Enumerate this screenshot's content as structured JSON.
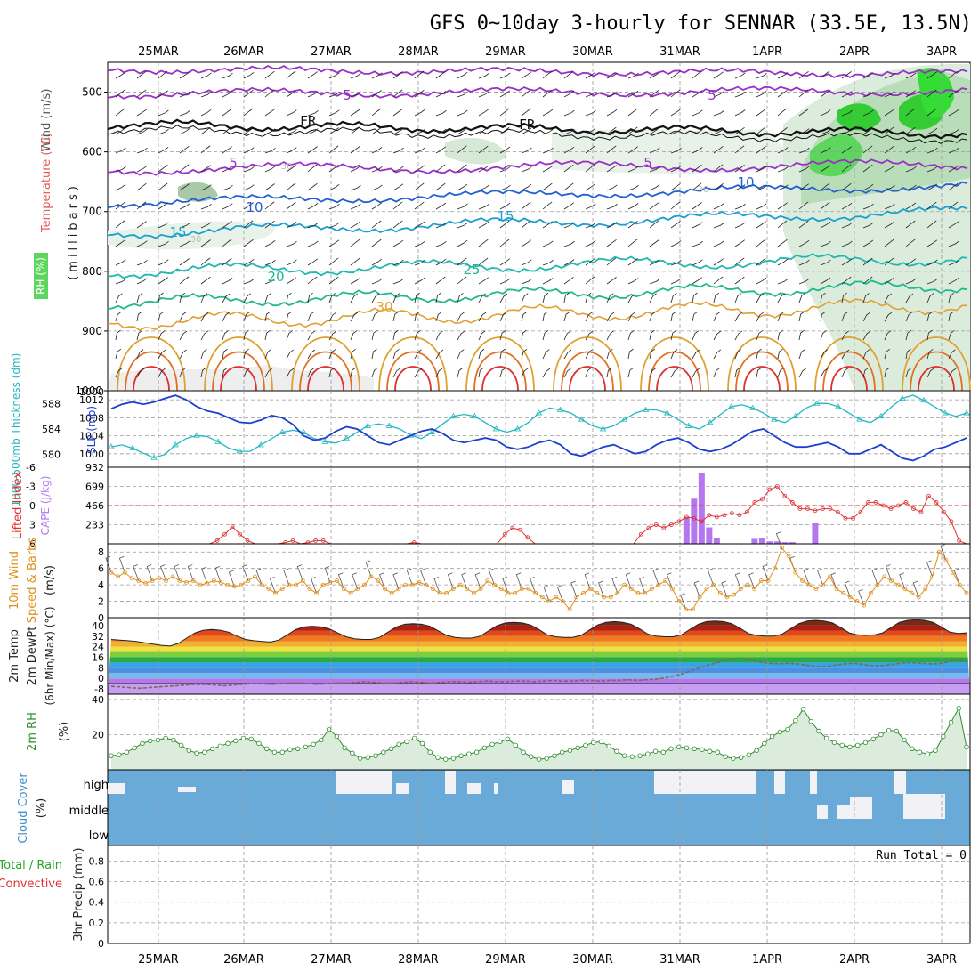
{
  "title": "GFS 0~10day 3-hourly for SENNAR (33.5E, 13.5N)",
  "dates": [
    "25MAR",
    "26MAR",
    "27MAR",
    "28MAR",
    "29MAR",
    "30MAR",
    "31MAR",
    "1APR",
    "2APR",
    "3APR"
  ],
  "colors": {
    "wind_label": "#555555",
    "temp_label": "#e25a5a",
    "thickness": "#22b8c0",
    "slp": "#1c3fcf",
    "lifted": "#e03030",
    "cape": "#b577f0",
    "wind10": "#e0901c",
    "rh": "#2e8b2e",
    "cloud_label": "#3b8fcb",
    "cloud_fill": "#6aaad8",
    "precip_total": "#2aa52a",
    "precip_conv": "#e03030"
  },
  "panels": {
    "upper": {
      "ylabel_wind": "Wind (m/s)",
      "ylabel_temp": "Temperature (°C)",
      "ylabel_rh": "RH (%)",
      "ylabel_unit": "(millibars)",
      "yticks": [
        "500",
        "600",
        "700",
        "800",
        "900",
        "1000"
      ],
      "contour_labels": [
        "5",
        "5",
        "5",
        "5",
        "FR",
        "FR",
        "10",
        "10",
        "15",
        "15",
        "20",
        "25",
        "30",
        "30",
        "30",
        "30"
      ]
    },
    "slp": {
      "ylabel_thick": "1000-500mb Thickness (dm)",
      "ylabel_slp": "SLP (mb)",
      "thick_ticks": [
        "588",
        "584",
        "580"
      ],
      "slp_ticks": [
        "1012",
        "1008",
        "1004",
        "1000"
      ],
      "slp_top": "1000"
    },
    "cape": {
      "ylabel_li": "Lifted Index",
      "ylabel_cape": "CAPE (J/kg)",
      "li_ticks": [
        "-6",
        "-3",
        "0",
        "3",
        "6"
      ],
      "cape_ticks": [
        "932",
        "699",
        "466",
        "233"
      ]
    },
    "wind10": {
      "ylabel1": "10m Wind",
      "ylabel2": "Speed & Barbs",
      "ylabel3": "(m/s)",
      "yticks": [
        "8",
        "6",
        "4",
        "2",
        "0"
      ]
    },
    "temp2m": {
      "ylabel1": "2m Temp",
      "ylabel2": "2m DewPt",
      "ylabel3": "(6hr Min/Max) (°C)",
      "yticks": [
        "40",
        "32",
        "24",
        "16",
        "8",
        "0",
        "-8"
      ]
    },
    "rh2m": {
      "ylabel1": "2m RH",
      "ylabel2": "(%)",
      "yticks": [
        "40",
        "20"
      ]
    },
    "cloud": {
      "ylabel1": "Cloud Cover",
      "ylabel2": "(%)",
      "levels": [
        "high",
        "middle",
        "low"
      ]
    },
    "precip": {
      "ylabel1": "Total / Rain",
      "ylabel2": "Convective",
      "ylabel3": "3hr Precip (mm)",
      "yticks": [
        "0.8",
        "0.6",
        "0.4",
        "0.2",
        "0"
      ],
      "run_total": "Run Total = 0"
    }
  },
  "chart_data": [
    {
      "type": "line",
      "name": "1000-500mb Thickness (dm)",
      "ylim": [
        578,
        590
      ],
      "values": [
        581.2,
        581.5,
        581.0,
        580.2,
        579.5,
        580.0,
        581.5,
        582.5,
        583.0,
        582.8,
        582.0,
        581.0,
        580.5,
        580.5,
        581.5,
        582.5,
        583.5,
        583.8,
        583.5,
        582.5,
        582.0,
        581.8,
        582.5,
        583.5,
        584.5,
        584.8,
        584.5,
        584.0,
        583.0,
        582.5,
        583.5,
        584.8,
        586.0,
        586.3,
        586.0,
        585.0,
        584.0,
        583.5,
        584.0,
        585.0,
        586.5,
        587.3,
        587.0,
        586.5,
        585.5,
        584.5,
        584.0,
        584.5,
        585.5,
        586.5,
        587.0,
        587.0,
        586.5,
        585.5,
        584.5,
        584.0,
        585.0,
        586.3,
        587.5,
        587.8,
        587.3,
        586.5,
        585.5,
        585.0,
        586.0,
        587.3,
        588.0,
        588.0,
        587.5,
        586.5,
        585.5,
        585.0,
        586.0,
        587.5,
        588.8,
        589.3,
        588.5,
        587.5,
        586.5,
        586.0,
        586.5
      ]
    },
    {
      "type": "line",
      "name": "SLP (mb)",
      "ylim": [
        997,
        1014
      ],
      "values": [
        1010.0,
        1011.0,
        1011.5,
        1011.0,
        1011.5,
        1012.3,
        1013.0,
        1012.0,
        1010.5,
        1009.5,
        1009.0,
        1008.0,
        1007.0,
        1006.8,
        1007.5,
        1008.5,
        1008.0,
        1006.5,
        1004.0,
        1003.0,
        1003.5,
        1005.0,
        1006.0,
        1005.5,
        1004.0,
        1002.5,
        1002.0,
        1003.0,
        1004.0,
        1005.0,
        1005.5,
        1004.5,
        1003.0,
        1002.5,
        1003.0,
        1003.5,
        1003.0,
        1001.5,
        1001.0,
        1001.5,
        1002.5,
        1003.0,
        1002.0,
        1000.0,
        999.5,
        1000.5,
        1001.5,
        1002.0,
        1001.0,
        1000.0,
        1000.5,
        1002.0,
        1003.0,
        1003.5,
        1002.5,
        1001.0,
        1000.5,
        1001.0,
        1002.0,
        1003.5,
        1005.0,
        1005.5,
        1004.0,
        1002.5,
        1001.5,
        1001.5,
        1002.0,
        1002.5,
        1001.5,
        1000.0,
        1000.0,
        1001.0,
        1002.0,
        1000.5,
        999.0,
        998.5,
        999.5,
        1001.0,
        1001.5,
        1002.5,
        1003.5
      ]
    },
    {
      "type": "line",
      "name": "Lifted Index",
      "ylim": [
        6,
        -6
      ],
      "values": [
        6,
        6,
        6,
        6,
        6,
        6,
        6,
        6,
        6,
        6,
        6,
        6,
        6,
        6,
        5.5,
        4.5,
        3.3,
        4.5,
        5.5,
        6,
        6,
        6,
        6,
        5.8,
        5.5,
        6,
        5.8,
        5.5,
        5.5,
        6,
        6,
        6,
        6,
        6,
        6,
        6,
        6,
        6,
        6,
        6,
        5.8,
        6,
        6,
        6,
        6,
        6,
        6,
        6,
        6,
        6,
        6,
        6,
        4.5,
        3.5,
        3.8,
        5.0,
        6,
        6,
        6,
        6,
        6,
        6,
        6,
        6,
        6,
        6,
        6,
        6,
        6,
        6,
        4.5,
        3.5,
        3.0,
        3.5,
        3.0,
        2.5,
        1.8,
        2.0,
        2.5,
        1.5,
        1.8,
        1.5,
        1.2,
        1.5,
        1.0,
        -0.5,
        -1.0,
        -2.5,
        -3.0,
        -1.5,
        -0.5,
        0.5,
        0.5,
        0.8,
        0.5,
        0.5,
        1.0,
        2.0,
        2.0,
        1.0,
        -0.5,
        -0.5,
        0.0,
        0.5,
        0.0,
        -0.5,
        0.5,
        1.0,
        -1.5,
        -0.5,
        1.0,
        2.5,
        5.5,
        6.0
      ]
    },
    {
      "type": "bar",
      "name": "CAPE (J/kg)",
      "ylim": [
        0,
        932
      ],
      "x_index": [
        76,
        77,
        78,
        79,
        80,
        85,
        86,
        87,
        88,
        89,
        90,
        93
      ],
      "values": [
        330,
        550,
        860,
        200,
        70,
        60,
        70,
        30,
        30,
        20,
        20,
        250
      ]
    },
    {
      "type": "line",
      "name": "10m Wind Speed",
      "ylim": [
        0,
        9
      ],
      "values": [
        5.5,
        5.0,
        5.5,
        4.8,
        4.5,
        4.2,
        4.5,
        4.8,
        4.5,
        5.0,
        4.5,
        4.3,
        4.5,
        4.0,
        4.2,
        4.5,
        4.3,
        4.0,
        3.8,
        4.0,
        4.5,
        5.0,
        4.0,
        3.5,
        3.0,
        3.5,
        4.0,
        4.0,
        4.5,
        3.5,
        3.0,
        4.0,
        4.3,
        4.5,
        3.5,
        3.0,
        3.5,
        4.0,
        5.0,
        4.5,
        3.5,
        3.0,
        3.5,
        4.0,
        4.0,
        4.3,
        4.0,
        3.5,
        3.0,
        3.0,
        3.5,
        4.0,
        3.5,
        3.0,
        3.5,
        4.5,
        4.0,
        3.5,
        3.0,
        3.0,
        3.5,
        3.5,
        3.0,
        2.5,
        2.0,
        2.5,
        2.0,
        1.0,
        2.5,
        3.0,
        3.5,
        3.0,
        2.5,
        2.5,
        3.0,
        4.0,
        3.5,
        3.0,
        3.0,
        3.5,
        4.0,
        4.5,
        3.5,
        2.0,
        1.0,
        1.0,
        2.5,
        3.5,
        4.0,
        3.0,
        2.5,
        2.8,
        3.5,
        4.0,
        3.5,
        4.5,
        4.5,
        6.0,
        8.5,
        7.5,
        5.5,
        4.5,
        4.0,
        3.5,
        4.0,
        5.0,
        3.5,
        3.0,
        2.5,
        2.0,
        1.5,
        3.0,
        4.0,
        5.0,
        4.5,
        4.0,
        3.5,
        3.0,
        2.5,
        3.5,
        5.0,
        8.0,
        7.0,
        5.5,
        4.0,
        3.0
      ]
    },
    {
      "type": "area",
      "name": "2m Temp",
      "ylim": [
        -12,
        46
      ],
      "values": [
        29.5,
        29.0,
        28.5,
        28.0,
        27.0,
        26.0,
        25.0,
        24.5,
        26.5,
        30.5,
        34.5,
        36.5,
        37.0,
        36.5,
        35.0,
        32.0,
        29.5,
        28.5,
        28.0,
        27.5,
        29.0,
        33.0,
        37.0,
        39.0,
        39.5,
        39.0,
        37.5,
        34.5,
        31.5,
        30.0,
        29.5,
        29.5,
        31.0,
        35.0,
        39.0,
        41.0,
        41.5,
        41.0,
        39.5,
        36.0,
        32.5,
        31.0,
        30.5,
        30.5,
        32.0,
        36.0,
        40.0,
        42.0,
        42.5,
        42.0,
        40.5,
        37.0,
        33.0,
        31.5,
        31.0,
        31.0,
        32.5,
        36.5,
        40.5,
        42.5,
        43.0,
        42.5,
        41.0,
        37.5,
        33.5,
        32.0,
        31.5,
        31.5,
        33.0,
        37.0,
        41.0,
        43.0,
        43.5,
        43.0,
        41.5,
        38.0,
        34.0,
        32.5,
        32.0,
        32.0,
        33.5,
        37.5,
        41.5,
        43.5,
        44.0,
        43.5,
        42.0,
        38.5,
        34.5,
        33.0,
        32.5,
        33.0,
        34.5,
        38.5,
        42.5,
        44.0,
        44.5,
        44.0,
        42.5,
        39.0,
        35.0,
        34.0,
        34.5
      ]
    },
    {
      "type": "line",
      "name": "2m DewPt",
      "ylim": [
        -12,
        46
      ],
      "values": [
        -6.0,
        -6.5,
        -7.0,
        -7.5,
        -7.0,
        -6.5,
        -6.0,
        -5.5,
        -5.0,
        -4.5,
        -4.5,
        -5.0,
        -5.5,
        -5.0,
        -4.5,
        -4.0,
        -4.0,
        -4.5,
        -4.0,
        -3.5,
        -3.5,
        -4.0,
        -4.5,
        -4.0,
        -3.5,
        -3.5,
        -3.0,
        -2.5,
        -3.0,
        -3.5,
        -3.5,
        -3.0,
        -2.5,
        -3.0,
        -3.5,
        -3.0,
        -2.5,
        -2.5,
        -3.0,
        -2.5,
        -2.0,
        -2.5,
        -2.5,
        -2.0,
        -2.0,
        -2.5,
        -2.0,
        -1.5,
        -2.0,
        -2.0,
        -1.5,
        -1.5,
        -2.0,
        -1.5,
        -1.5,
        -1.0,
        -1.5,
        -1.0,
        -0.5,
        0.5,
        2.0,
        4.0,
        6.5,
        9.0,
        11.0,
        13.0,
        14.5,
        15.0,
        14.0,
        12.5,
        11.5,
        11.0,
        11.5,
        11.0,
        10.0,
        9.0,
        9.0,
        10.0,
        11.0,
        11.5,
        10.5,
        9.5,
        9.5,
        10.5,
        11.5,
        12.0,
        11.5,
        11.0,
        11.0,
        12.5,
        14.0,
        12.5
      ]
    },
    {
      "type": "area",
      "name": "2m RH",
      "ylim": [
        0,
        43
      ],
      "values": [
        8.0,
        8.5,
        10.0,
        12.5,
        15.0,
        16.5,
        17.0,
        18.0,
        17.0,
        14.0,
        11.0,
        9.5,
        10.0,
        12.0,
        13.5,
        15.0,
        16.5,
        18.0,
        17.5,
        15.0,
        12.0,
        10.0,
        10.0,
        11.5,
        12.0,
        13.0,
        14.5,
        17.0,
        23.0,
        19.0,
        12.5,
        9.5,
        6.5,
        7.0,
        8.0,
        10.0,
        12.0,
        14.5,
        16.0,
        18.0,
        15.0,
        10.0,
        7.0,
        6.0,
        6.5,
        8.0,
        9.0,
        10.0,
        12.5,
        14.5,
        16.0,
        17.5,
        14.0,
        10.0,
        7.5,
        6.0,
        6.5,
        8.0,
        10.0,
        11.0,
        12.5,
        14.0,
        15.5,
        16.0,
        13.5,
        10.5,
        8.0,
        7.5,
        8.0,
        9.0,
        10.5,
        10.0,
        12.0,
        13.0,
        12.5,
        12.0,
        11.5,
        10.5,
        10.0,
        7.5,
        6.5,
        7.0,
        8.5,
        11.0,
        15.0,
        19.0,
        21.5,
        23.0,
        28.0,
        34.5,
        27.5,
        22.0,
        18.0,
        15.5,
        14.0,
        13.0,
        14.0,
        15.5,
        17.5,
        20.0,
        22.5,
        22.0,
        17.0,
        12.0,
        10.0,
        9.0,
        11.0,
        19.0,
        27.0,
        35.0,
        13.0
      ]
    }
  ]
}
